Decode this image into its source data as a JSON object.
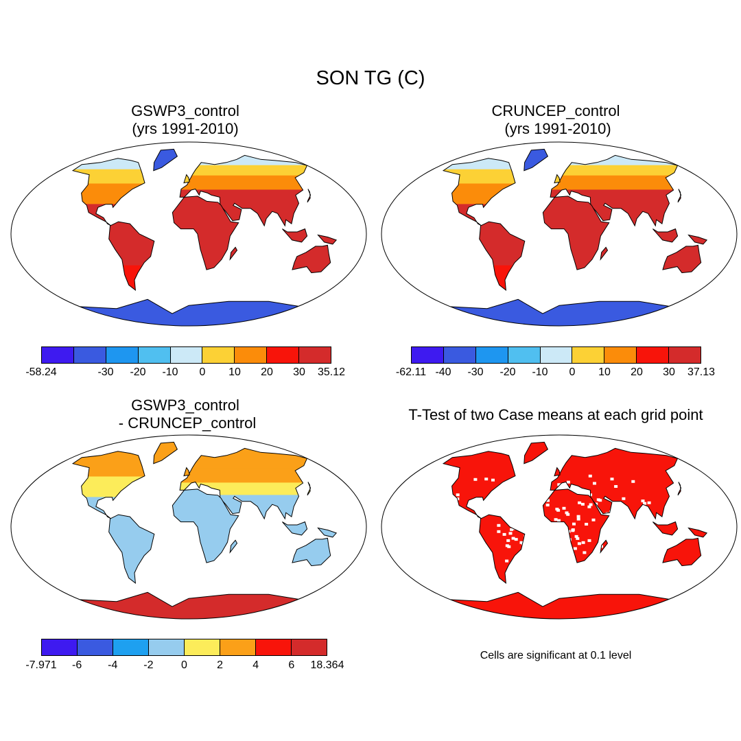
{
  "figure": {
    "title": "SON TG (C)"
  },
  "panels": [
    {
      "id": "gswp3",
      "title_line1": "GSWP3_control",
      "title_line2": "(yrs 1991-2010)",
      "colorbar": {
        "colors": [
          "#3e1af0",
          "#3a5ae0",
          "#1e96f0",
          "#50bff0",
          "#cce9f7",
          "#fcd135",
          "#fb8c0a",
          "#f8140a",
          "#d42b2b"
        ],
        "labels": [
          "-58.24",
          "-30",
          "-20",
          "-10",
          "0",
          "10",
          "20",
          "30",
          "35.12"
        ]
      }
    },
    {
      "id": "cruncep",
      "title_line1": "CRUNCEP_control",
      "title_line2": " (yrs 1991-2010)",
      "colorbar": {
        "colors": [
          "#3e1af0",
          "#3a5ae0",
          "#1e96f0",
          "#50bff0",
          "#cce9f7",
          "#fcd135",
          "#fb8c0a",
          "#f8140a",
          "#d42b2b"
        ],
        "labels": [
          "-62.11",
          "-40",
          "-30",
          "-20",
          "-10",
          "0",
          "10",
          "20",
          "30",
          "37.13"
        ]
      }
    },
    {
      "id": "difference",
      "title_line1": "GSWP3_control",
      "title_line2": " - CRUNCEP_control",
      "colorbar": {
        "colors": [
          "#3e1af0",
          "#3a5ae0",
          "#1ea0f0",
          "#96ccee",
          "#fcec5a",
          "#fba018",
          "#f8140a",
          "#d42b2b"
        ],
        "labels": [
          "-7.971",
          "-6",
          "-4",
          "-2",
          "0",
          "2",
          "4",
          "6",
          "18.364"
        ]
      }
    },
    {
      "id": "ttest",
      "title_line1": "T-Test of two Case means at each grid point",
      "note": "Cells are significant at 0.1 level",
      "fill_color": "#f8140a"
    }
  ]
}
